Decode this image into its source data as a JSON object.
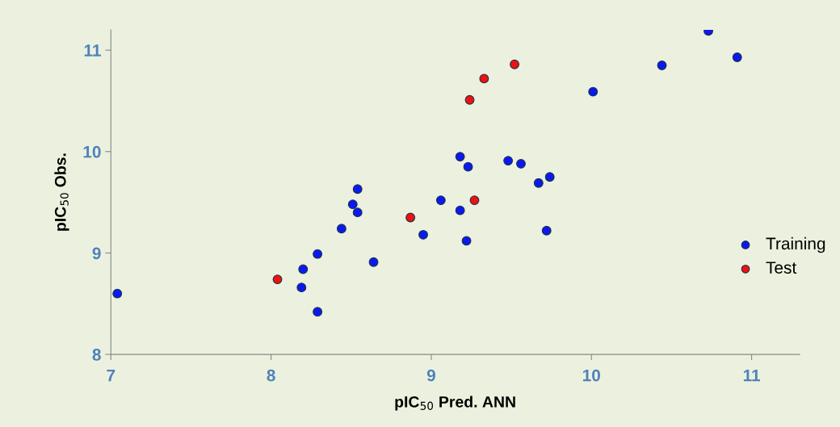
{
  "chart_data": {
    "type": "scatter",
    "xlabel": "pIC$_{50}$ Pred. ANN",
    "ylabel": "pIC$_{50}$ Obs.",
    "xlim": [
      7,
      11.3
    ],
    "ylim": [
      8,
      11.2
    ],
    "xticks": [
      7,
      8,
      9,
      10,
      11
    ],
    "yticks": [
      8,
      9,
      10,
      11
    ],
    "grid": false,
    "legend": "right",
    "marker": "circle",
    "series": [
      {
        "name": "Training",
        "color": "#0a1aee",
        "x": [
          7.04,
          8.19,
          8.2,
          8.29,
          8.29,
          8.44,
          8.51,
          8.54,
          8.54,
          8.64,
          8.95,
          9.06,
          9.18,
          9.18,
          9.23,
          9.22,
          9.48,
          9.56,
          9.67,
          9.74,
          9.72,
          10.01,
          10.44,
          10.73,
          10.91
        ],
        "values": [
          8.6,
          8.66,
          8.84,
          8.99,
          8.42,
          9.24,
          9.48,
          9.63,
          9.4,
          8.91,
          9.18,
          9.52,
          9.95,
          9.42,
          9.85,
          9.12,
          9.91,
          9.88,
          9.69,
          9.75,
          9.22,
          10.59,
          10.85,
          11.19,
          10.93
        ]
      },
      {
        "name": "Test",
        "color": "#ee1111",
        "x": [
          8.04,
          8.87,
          9.27,
          9.24,
          9.33,
          9.52
        ],
        "values": [
          8.74,
          9.35,
          9.52,
          10.51,
          10.72,
          10.86
        ]
      }
    ]
  }
}
